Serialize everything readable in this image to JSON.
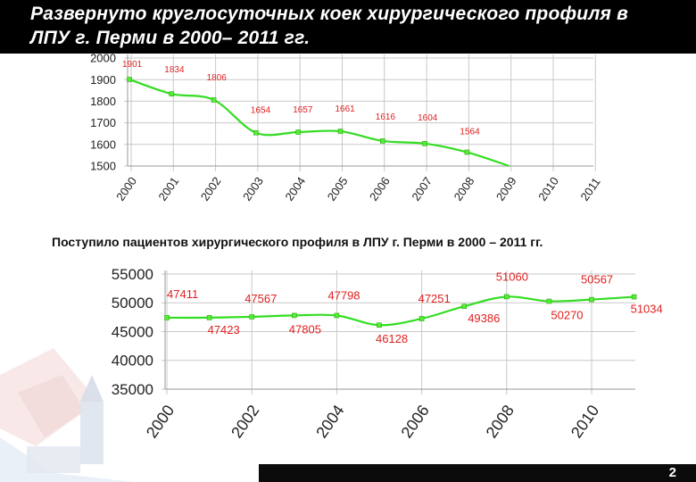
{
  "slide": {
    "title": "Развернуто круглосуточных коек хирургического профиля в ЛПУ г. Перми в 2000– 2011 гг.",
    "caption": "Поступило пациентов хирургического профиля в ЛПУ г. Перми в 2000 – 2011 гг.",
    "page_number": "2"
  },
  "colors": {
    "line": "#33dd22",
    "marker": "#55ee33",
    "label": "#e02020",
    "grid": "#c8c8c8",
    "title_bar": "#000000"
  },
  "chart_data": [
    {
      "type": "line",
      "x": [
        "2000",
        "2001",
        "2002",
        "2003",
        "2004",
        "2005",
        "2006",
        "2007",
        "2008",
        "2009",
        "2010",
        "2011"
      ],
      "series": [
        {
          "values": [
            1901,
            1834,
            1806,
            1654,
            1657,
            1661,
            1616,
            1604,
            1564,
            1500,
            null,
            null
          ],
          "data_labels": [
            "1901",
            "1834",
            "1806",
            "1654",
            "1657",
            "1661",
            "1616",
            "1604",
            "1564",
            "",
            "",
            ""
          ]
        }
      ],
      "y_ticks": [
        "1500",
        "1600",
        "1700",
        "1800",
        "1900",
        "2000"
      ],
      "ylim": [
        1500,
        2000
      ],
      "grid": true,
      "smooth": true
    },
    {
      "type": "line",
      "x": [
        "2000",
        "2001",
        "2002",
        "2003",
        "2004",
        "2005",
        "2006",
        "2007",
        "2008",
        "2009",
        "2010",
        "2011"
      ],
      "x_tick_labels": [
        "2000",
        "2002",
        "2004",
        "2006",
        "2008",
        "2010"
      ],
      "series": [
        {
          "values": [
            47411,
            47423,
            47567,
            47805,
            47798,
            46128,
            47251,
            49386,
            51060,
            50270,
            50567,
            51034
          ],
          "data_labels": [
            "47411",
            "47423",
            "47567",
            "47805",
            "47798",
            "46128",
            "47251",
            "49386",
            "51060",
            "50270",
            "50567",
            "51034"
          ]
        }
      ],
      "y_ticks": [
        "35000",
        "40000",
        "45000",
        "50000",
        "55000"
      ],
      "ylim": [
        35000,
        55000
      ],
      "grid": true,
      "smooth": true
    }
  ]
}
